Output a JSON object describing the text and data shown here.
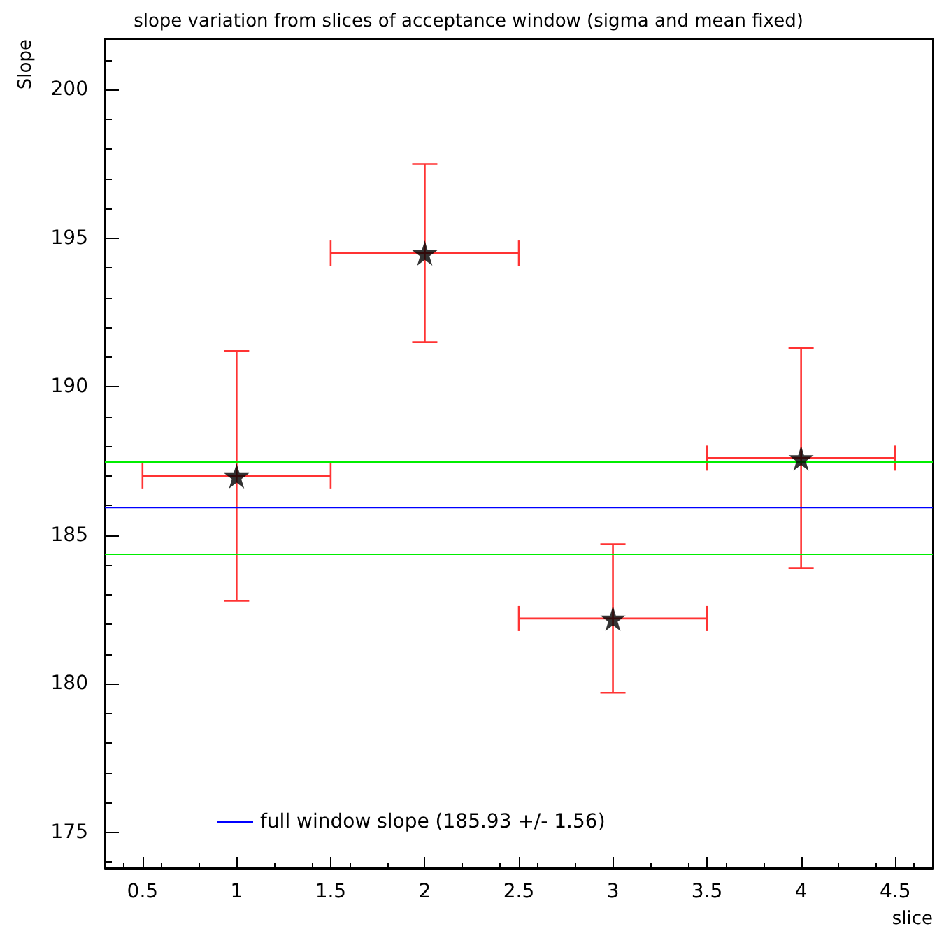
{
  "chart_data": {
    "type": "scatter",
    "title": "slope variation from slices of acceptance window (sigma and mean fixed)",
    "xlabel": "slice",
    "ylabel": "Slope",
    "series": [
      {
        "color": "#000000",
        "marker": "star",
        "x": [
          1,
          2,
          3,
          4
        ],
        "values": [
          187.0,
          194.5,
          182.2,
          187.6
        ],
        "errors": [
          4.2,
          3.0,
          2.5,
          3.7
        ],
        "xerrors": [
          0.5,
          0.5,
          0.5,
          0.5
        ]
      },
      {
        "type": "line",
        "name": "full window slope (185.93 +/- 1.56)",
        "color": "#0000ff",
        "marker": "none",
        "x": [
          0.3,
          4.7
        ],
        "values": [
          185.93,
          185.93
        ]
      }
    ],
    "ref_lines": [
      {
        "axis": "y",
        "value": 187.49,
        "color": "#00ee00"
      },
      {
        "axis": "y",
        "value": 184.37,
        "color": "#00ee00"
      }
    ],
    "xlim": [
      0.3,
      4.7
    ],
    "xticks": [
      0.5,
      1,
      1.5,
      2,
      2.5,
      3,
      3.5,
      4,
      4.5
    ],
    "ylim": [
      173.8,
      201.7
    ],
    "yticks": [
      175,
      180,
      185,
      190,
      195,
      200
    ],
    "grid": false,
    "legend": "bottom left"
  }
}
